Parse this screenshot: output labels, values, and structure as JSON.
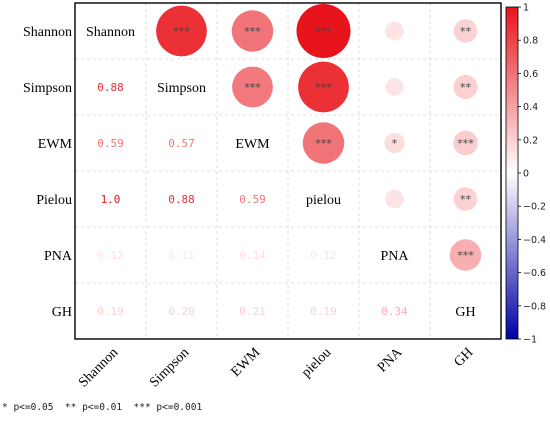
{
  "chart_data": {
    "type": "heatmap",
    "subtype": "correlation-matrix",
    "row_labels": [
      "Shannon",
      "Simpson",
      "EWM",
      "Pielou",
      "PNA",
      "GH"
    ],
    "col_labels": [
      "Shannon",
      "Simpson",
      "EWM",
      "pielou",
      "PNA",
      "GH"
    ],
    "diagonal_labels": [
      "Shannon",
      "Simpson",
      "EWM",
      "pielou",
      "PNA",
      "GH"
    ],
    "upper_triangle_coefficients": [
      [
        null,
        0.88,
        0.59,
        1.0,
        0.12,
        0.19
      ],
      [
        null,
        null,
        0.57,
        0.88,
        0.11,
        0.2
      ],
      [
        null,
        null,
        null,
        0.59,
        0.14,
        0.21
      ],
      [
        null,
        null,
        null,
        null,
        0.12,
        0.19
      ],
      [
        null,
        null,
        null,
        null,
        null,
        0.34
      ],
      [
        null,
        null,
        null,
        null,
        null,
        null
      ]
    ],
    "upper_triangle_significance": [
      [
        null,
        "***",
        "***",
        "***",
        "",
        "**"
      ],
      [
        null,
        null,
        "***",
        "***",
        "",
        "**"
      ],
      [
        null,
        null,
        null,
        "***",
        "*",
        "***"
      ],
      [
        null,
        null,
        null,
        null,
        "",
        "**"
      ],
      [
        null,
        null,
        null,
        null,
        null,
        "***"
      ],
      [
        null,
        null,
        null,
        null,
        null,
        null
      ]
    ],
    "lower_triangle_labels": [
      [
        null,
        null,
        null,
        null,
        null,
        null
      ],
      [
        "0.88",
        null,
        null,
        null,
        null,
        null
      ],
      [
        "0.59",
        "0.57",
        null,
        null,
        null,
        null
      ],
      [
        "1.0",
        "0.88",
        "0.59",
        null,
        null,
        null
      ],
      [
        "0.12",
        "0.11",
        "0.14",
        "0.12",
        null,
        null
      ],
      [
        "0.19",
        "0.20",
        "0.21",
        "0.19",
        "0.34",
        null
      ]
    ],
    "colorbar": {
      "range": [
        -1,
        1
      ],
      "ticks": [
        "1",
        "0.8",
        "0.6",
        "0.4",
        "0.2",
        "0",
        "-0.2",
        "-0.4",
        "-0.6",
        "-0.8",
        "-1"
      ],
      "colors": {
        "positive": "#e8141b",
        "zero": "#ffffff",
        "negative": "#0000a8"
      }
    },
    "grid": true
  },
  "footnote": "* p<=0.05  ** p<=0.01  *** p<=0.001"
}
